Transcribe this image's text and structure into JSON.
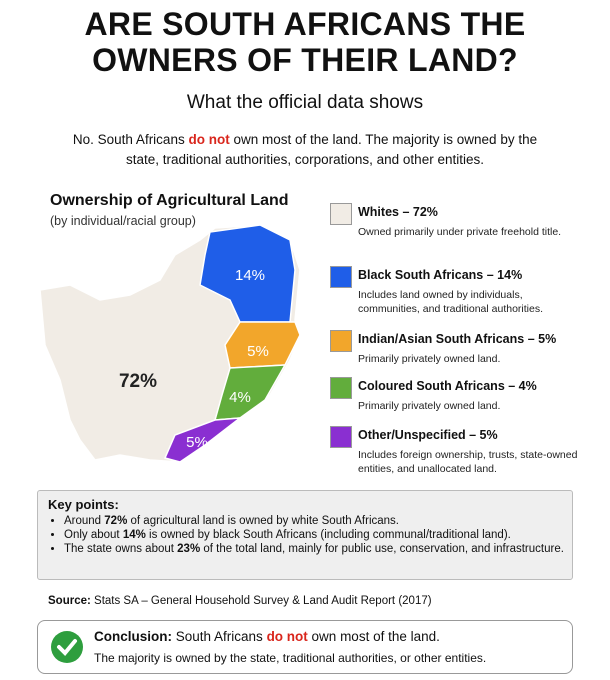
{
  "header": {
    "title_lines": [
      "ARE SOUTH AFRICANS THE",
      "OWNERS OF THEIR LAND?"
    ],
    "subtitle": "What the official data shows",
    "intro": {
      "before": "No. South Africans ",
      "emphasis": "do not",
      "after": " own most of the land. The majority is owned by the state, traditional authorities, corporations, and other entities."
    }
  },
  "map": {
    "title": "Ownership of Agricultural Land",
    "subtitle": "(by individual/racial group)",
    "regions": [
      {
        "label": "72%",
        "color": "#f1ece5"
      },
      {
        "label": "14%",
        "color": "#1f5ee8"
      },
      {
        "label": "5%",
        "color": "#f2a62b"
      },
      {
        "label": "4%",
        "color": "#62ad3c"
      },
      {
        "label": "5%",
        "color": "#8a2fd1"
      }
    ]
  },
  "legend": [
    {
      "heading": "Whites – 72%",
      "text": "Owned primarily under private freehold title."
    },
    {
      "heading": "Black South Africans – 14%",
      "text": "Includes land owned by individuals, communities, and traditional authorities."
    },
    {
      "heading": "Indian/Asian South Africans – 5%",
      "text": "Primarily privately owned land."
    },
    {
      "heading": "Coloured South Africans – 4%",
      "text": "Primarily privately owned land."
    },
    {
      "heading": "Other/Unspecified – 5%",
      "text": "Includes foreign ownership, trusts, state-owned entities, and unallocated land."
    }
  ],
  "key_points": {
    "heading": "Key points:",
    "items": [
      {
        "before": "Around ",
        "bold": "72%",
        "after": " of agricultural land is owned by white South Africans."
      },
      {
        "before": "Only about ",
        "bold": "14%",
        "after": " is owned by black South Africans (including communal/traditional land)."
      },
      {
        "before": "The state owns about ",
        "bold": "23%",
        "after": " of the total land, mainly for public use, conservation, and infrastructure."
      }
    ]
  },
  "source": {
    "label": "Source:",
    "text": " Stats SA – General Household Survey & Land Audit Report (2017)"
  },
  "conclusion": {
    "label": "Conclusion:",
    "before": " South Africans ",
    "emphasis": "do not",
    "after": " own most of the land.",
    "line2": "The majority is owned by the state, traditional authorities, or other entities."
  }
}
